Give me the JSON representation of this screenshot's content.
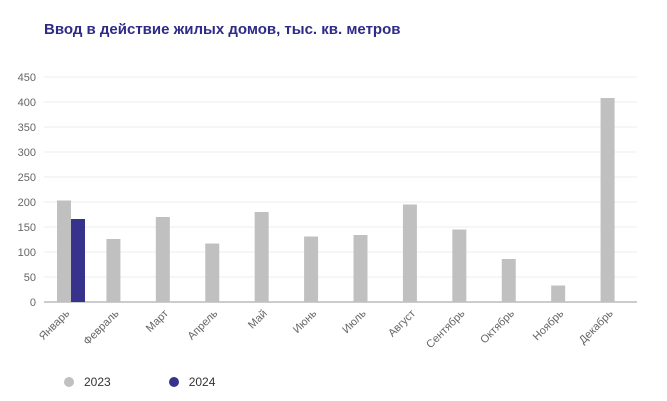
{
  "chart_data": {
    "type": "bar",
    "title": "Ввод в действие жилых домов, тыс. кв. метров",
    "categories": [
      "Январь",
      "Февраль",
      "Март",
      "Апрель",
      "Май",
      "Июнь",
      "Июль",
      "Август",
      "Сентябрь",
      "Октябрь",
      "Ноябрь",
      "Декабрь"
    ],
    "series": [
      {
        "name": "2023",
        "color": "#c0c0c0",
        "values": [
          203,
          126,
          170,
          117,
          180,
          131,
          134,
          195,
          145,
          86,
          33,
          408
        ]
      },
      {
        "name": "2024",
        "color": "#37338c",
        "values": [
          166,
          null,
          null,
          null,
          null,
          null,
          null,
          null,
          null,
          null,
          null,
          null
        ]
      }
    ],
    "ylim": [
      0,
      450
    ],
    "yticks": [
      0,
      50,
      100,
      150,
      200,
      250,
      300,
      350,
      400,
      450
    ],
    "grid": true,
    "legend_position": "bottom-left"
  }
}
